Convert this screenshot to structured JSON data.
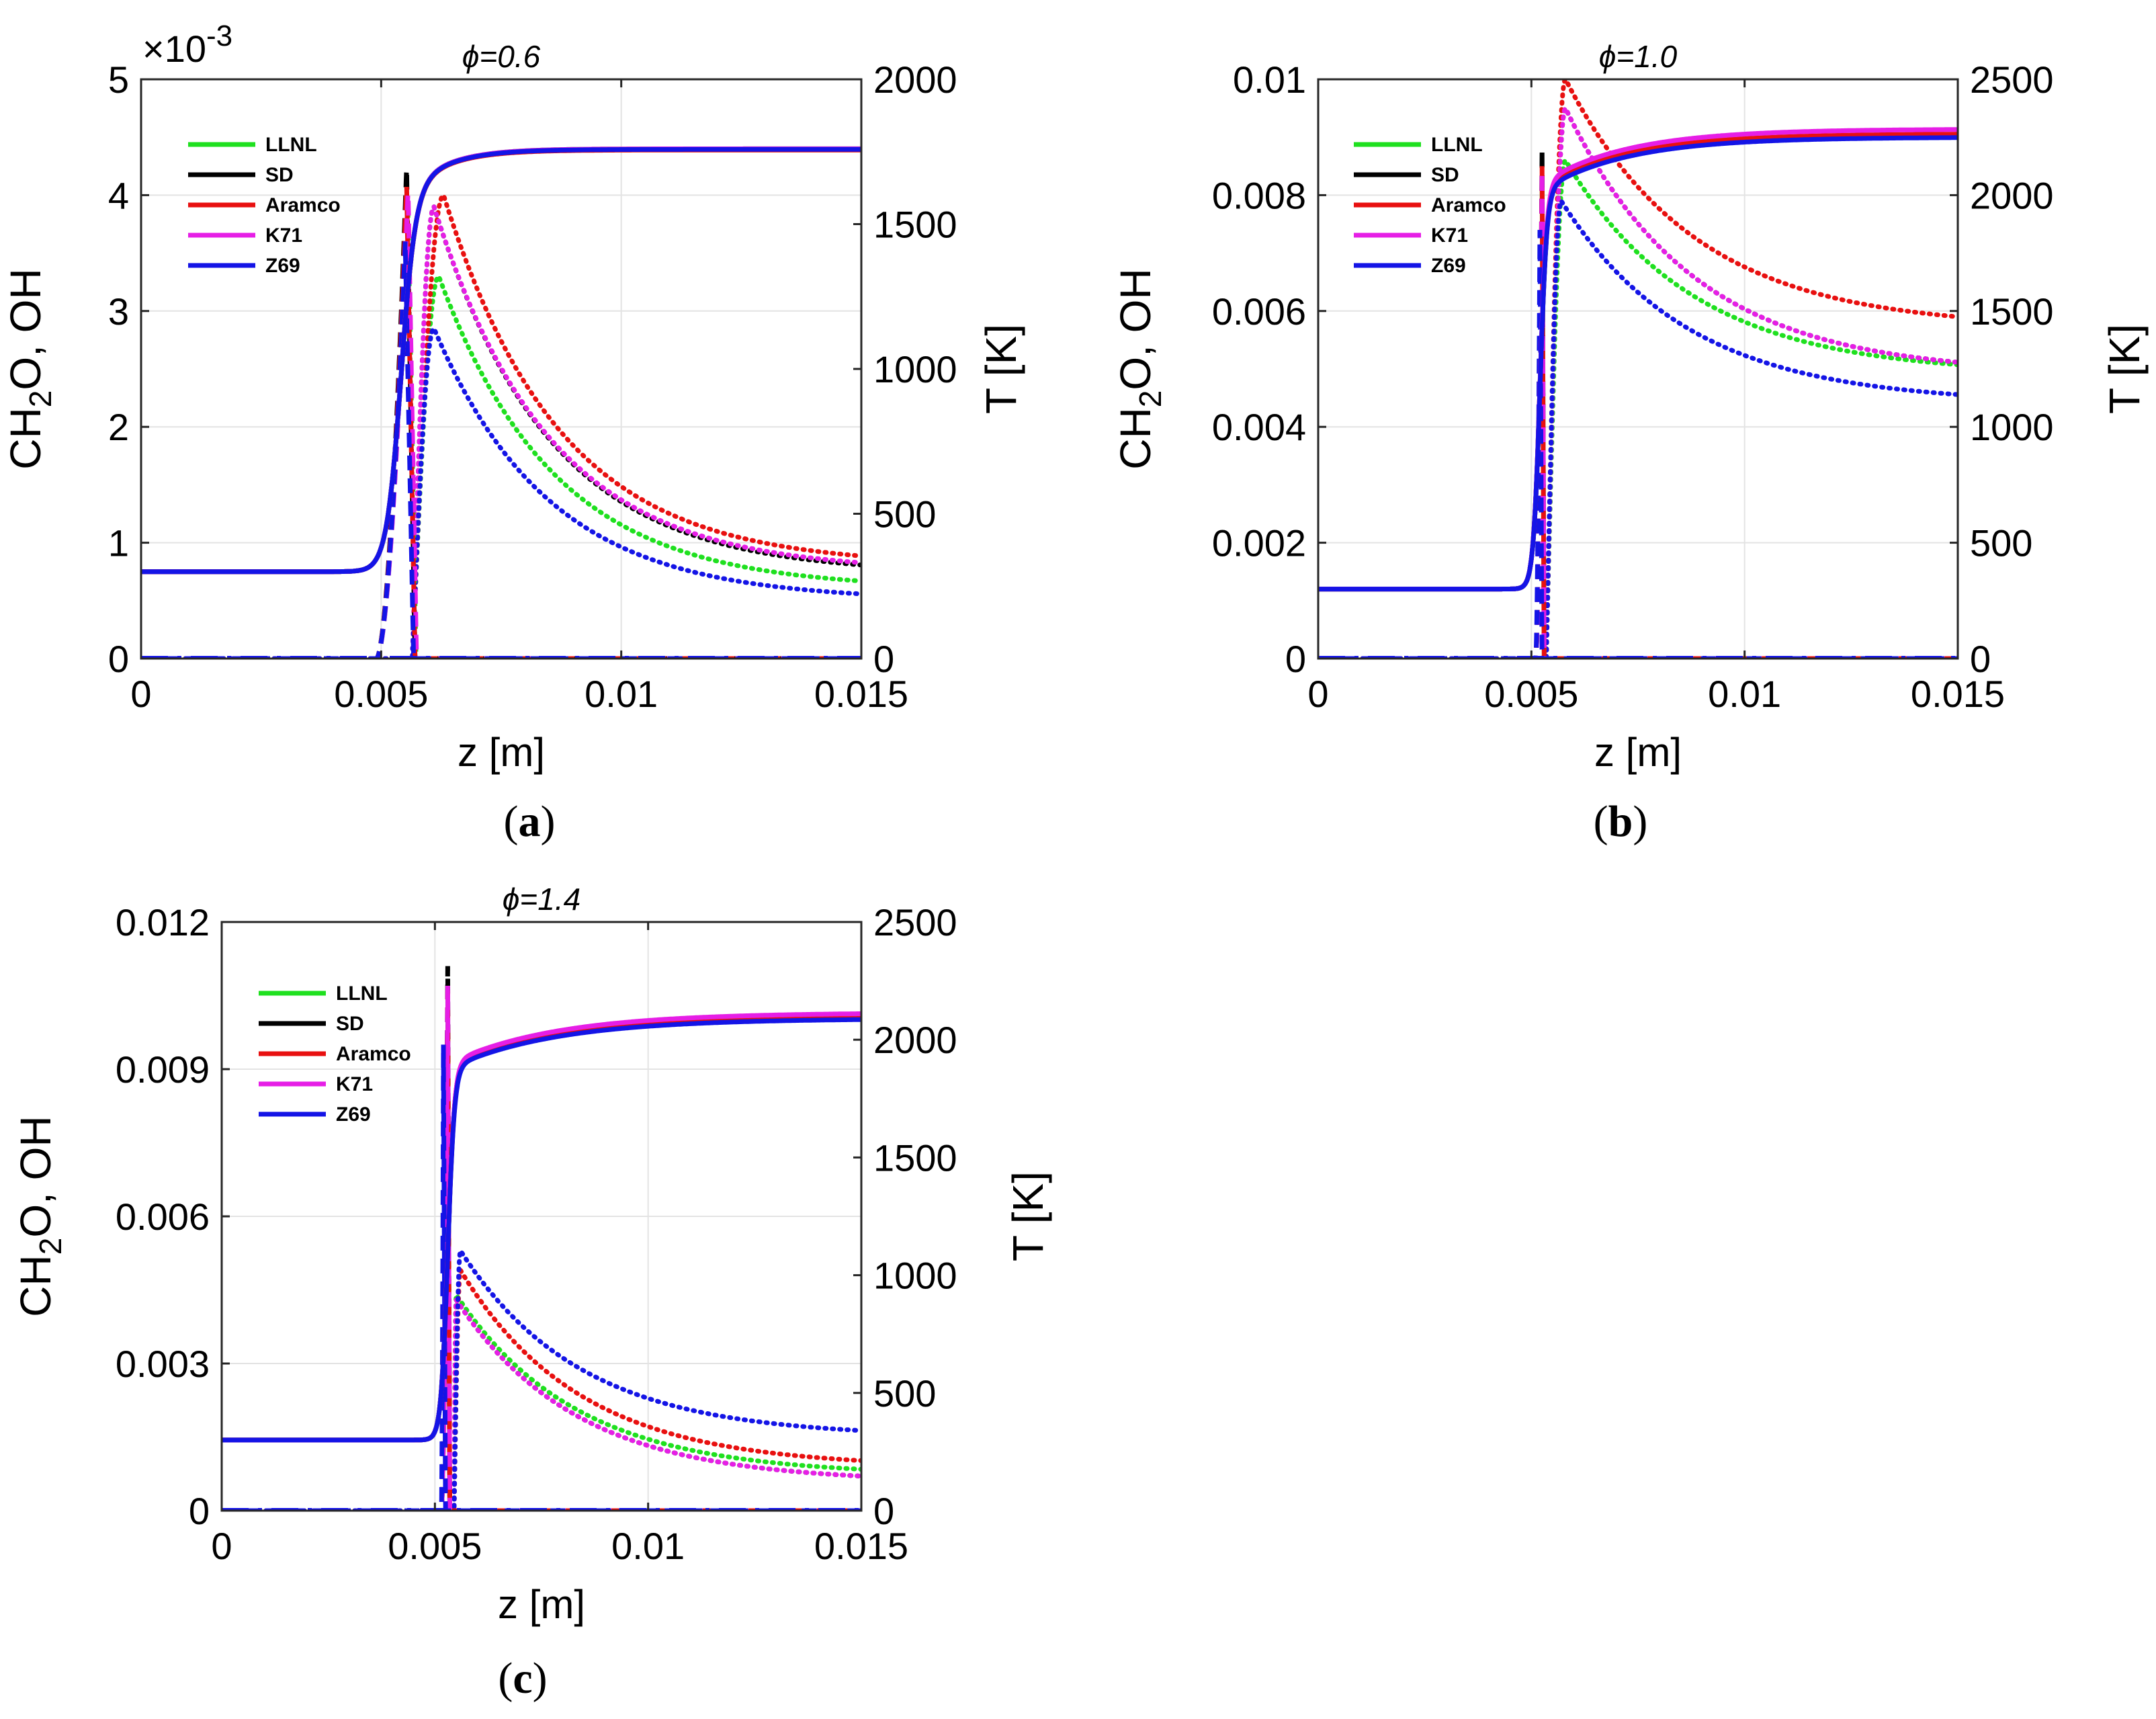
{
  "figure": {
    "panel_labels": [
      "(a)",
      "(b)",
      "(c)"
    ],
    "legend_colors": {
      "LLNL": "#1fe01f",
      "SD": "#000000",
      "Aramco": "#e81010",
      "K71": "#e61ee6",
      "Z69": "#1414e6"
    }
  },
  "chart_data": [
    {
      "type": "line",
      "title": "ϕ=0.6",
      "xlabel": "z [m]",
      "ylabel_left": "CH2O, OH",
      "ylabel_right": "T [K]",
      "xlim": [
        0,
        0.015
      ],
      "xticks": [
        "0",
        "0.005",
        "0.01",
        "0.015"
      ],
      "ylim_left": [
        0,
        5
      ],
      "yticks_left": [
        "0",
        "1",
        "2",
        "3",
        "4",
        "5"
      ],
      "exponent_label": "×10",
      "exponent": "-3",
      "ylim_right": [
        0,
        2000
      ],
      "yticks_right": [
        "0",
        "500",
        "1000",
        "1500",
        "2000"
      ],
      "legend": [
        "LLNL",
        "SD",
        "Aramco",
        "K71",
        "Z69"
      ],
      "temperature": {
        "T0": 300,
        "z_ign": 0.0054,
        "width": 0.00015,
        "tail": 0.0008,
        "Tmax": {
          "LLNL": 1760,
          "SD": 1758,
          "Aramco": 1756,
          "K71": 1760,
          "Z69": 1758
        }
      },
      "ch2o": {
        "z_start": 0.0049,
        "width": 0.00022,
        "peak_z": {
          "LLNL": 0.00555,
          "SD": 0.00553,
          "Aramco": 0.00553,
          "K71": 0.00556,
          "Z69": 0.0055
        },
        "peak": {
          "LLNL": 4.0,
          "SD": 4.25,
          "Aramco": 4.1,
          "K71": 4.05,
          "Z69": 3.6
        }
      },
      "oh": {
        "z_start": 0.00565,
        "decay": 0.0024,
        "peak_z": {
          "LLNL": 0.0062,
          "SD": 0.0061,
          "Aramco": 0.0063,
          "K71": 0.0061,
          "Z69": 0.0061
        },
        "peak": {
          "LLNL": 3.3,
          "SD": 3.9,
          "Aramco": 4.0,
          "K71": 3.9,
          "Z69": 2.85
        },
        "final": {
          "LLNL": 0.6,
          "SD": 0.73,
          "Aramco": 0.8,
          "K71": 0.75,
          "Z69": 0.5
        }
      }
    },
    {
      "type": "line",
      "title": "ϕ=1.0",
      "xlabel": "z [m]",
      "ylabel_left": "CH2O, OH",
      "ylabel_right": "T [K]",
      "xlim": [
        0,
        0.015
      ],
      "xticks": [
        "0",
        "0.005",
        "0.01",
        "0.015"
      ],
      "ylim_left": [
        0,
        0.01
      ],
      "yticks_left": [
        "0",
        "0.002",
        "0.004",
        "0.006",
        "0.008",
        "0.01"
      ],
      "ylim_right": [
        0,
        2500
      ],
      "yticks_right": [
        "0",
        "500",
        "1000",
        "1500",
        "2000",
        "2500"
      ],
      "legend": [
        "LLNL",
        "SD",
        "Aramco",
        "K71",
        "Z69"
      ],
      "temperature": {
        "T0": 300,
        "z_ign": 0.0052,
        "width": 8e-05,
        "tail": 0.002,
        "Tmax": {
          "LLNL": 2260,
          "SD": 2260,
          "Aramco": 2265,
          "K71": 2285,
          "Z69": 2250
        }
      },
      "ch2o": {
        "z_start": 0.0051,
        "width": 6e-05,
        "peak_z": {
          "LLNL": 0.00525,
          "SD": 0.00525,
          "Aramco": 0.00525,
          "K71": 0.00525,
          "Z69": 0.0052
        },
        "peak": {
          "LLNL": 0.0083,
          "SD": 0.0088,
          "Aramco": 0.0085,
          "K71": 0.0084,
          "Z69": 0.0074
        }
      },
      "oh": {
        "z_start": 0.00535,
        "decay": 0.003,
        "peak_z": {
          "LLNL": 0.0058,
          "SD": 0.0058,
          "Aramco": 0.0058,
          "K71": 0.0058,
          "Z69": 0.0057
        },
        "peak": {
          "LLNL": 0.0086,
          "SD": 0.0095,
          "Aramco": 0.01,
          "K71": 0.0095,
          "Z69": 0.0079
        },
        "final": {
          "LLNL": 0.0049,
          "SD": 0.0049,
          "Aramco": 0.0057,
          "K71": 0.0049,
          "Z69": 0.0044
        }
      }
    },
    {
      "type": "line",
      "title": "ϕ=1.4",
      "xlabel": "z [m]",
      "ylabel_left": "CH2O, OH",
      "ylabel_right": "T [K]",
      "xlim": [
        0,
        0.015
      ],
      "xticks": [
        "0",
        "0.005",
        "0.01",
        "0.015"
      ],
      "ylim_left": [
        0,
        0.012
      ],
      "yticks_left": [
        "0",
        "0.003",
        "0.006",
        "0.009",
        "0.012"
      ],
      "ylim_right": [
        0,
        2500
      ],
      "yticks_right": [
        "0",
        "500",
        "1000",
        "1500",
        "2000",
        "2500"
      ],
      "legend": [
        "LLNL",
        "SD",
        "Aramco",
        "K71",
        "Z69"
      ],
      "temperature": {
        "T0": 300,
        "z_ign": 0.0053,
        "width": 8e-05,
        "tail": 0.0025,
        "Tmax": {
          "LLNL": 2110,
          "SD": 2110,
          "Aramco": 2100,
          "K71": 2115,
          "Z69": 2090
        }
      },
      "ch2o": {
        "z_start": 0.00515,
        "width": 6e-05,
        "peak_z": {
          "LLNL": 0.0053,
          "SD": 0.0053,
          "Aramco": 0.0053,
          "K71": 0.0053,
          "Z69": 0.0052
        },
        "peak": {
          "LLNL": 0.0105,
          "SD": 0.0111,
          "Aramco": 0.0106,
          "K71": 0.0107,
          "Z69": 0.0095
        }
      },
      "oh": {
        "z_start": 0.00545,
        "decay": 0.0028,
        "peak_z": {
          "LLNL": 0.0055,
          "SD": 0.0055,
          "Aramco": 0.0056,
          "K71": 0.0055,
          "Z69": 0.0056
        },
        "peak": {
          "LLNL": 0.0044,
          "SD": 0.0043,
          "Aramco": 0.0049,
          "K71": 0.0043,
          "Z69": 0.0053
        },
        "final": {
          "LLNL": 0.00072,
          "SD": 0.00058,
          "Aramco": 0.00088,
          "K71": 0.00058,
          "Z69": 0.0015
        }
      }
    }
  ]
}
